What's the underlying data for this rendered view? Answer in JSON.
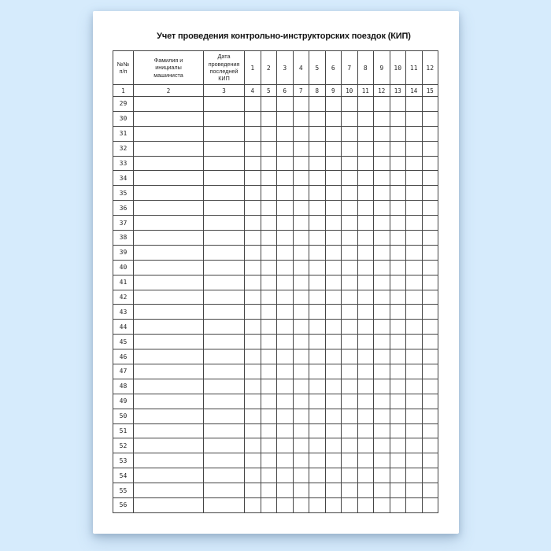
{
  "title": "Учет проведения контрольно-инструкторских поездок (КИП)",
  "colors": {
    "background": "#d6ebfc",
    "paper": "#ffffff",
    "grid_line": "#454545",
    "text": "#1f1f1f"
  },
  "table": {
    "header": {
      "col_no": "№№\nп/п",
      "col_name": "Фамилия и\nинициалы\nмашиниста",
      "col_date": "Дата\nпроведения\nпоследней\nКИП",
      "month_cols": [
        "1",
        "2",
        "3",
        "4",
        "5",
        "6",
        "7",
        "8",
        "9",
        "10",
        "11",
        "12"
      ]
    },
    "index_row": [
      "1",
      "2",
      "3",
      "4",
      "5",
      "6",
      "7",
      "8",
      "9",
      "10",
      "11",
      "12",
      "13",
      "14",
      "15"
    ],
    "row_numbers": [
      "29",
      "30",
      "31",
      "32",
      "33",
      "34",
      "35",
      "36",
      "37",
      "38",
      "39",
      "40",
      "41",
      "42",
      "43",
      "44",
      "45",
      "46",
      "47",
      "48",
      "49",
      "50",
      "51",
      "52",
      "53",
      "54",
      "55",
      "56"
    ]
  }
}
